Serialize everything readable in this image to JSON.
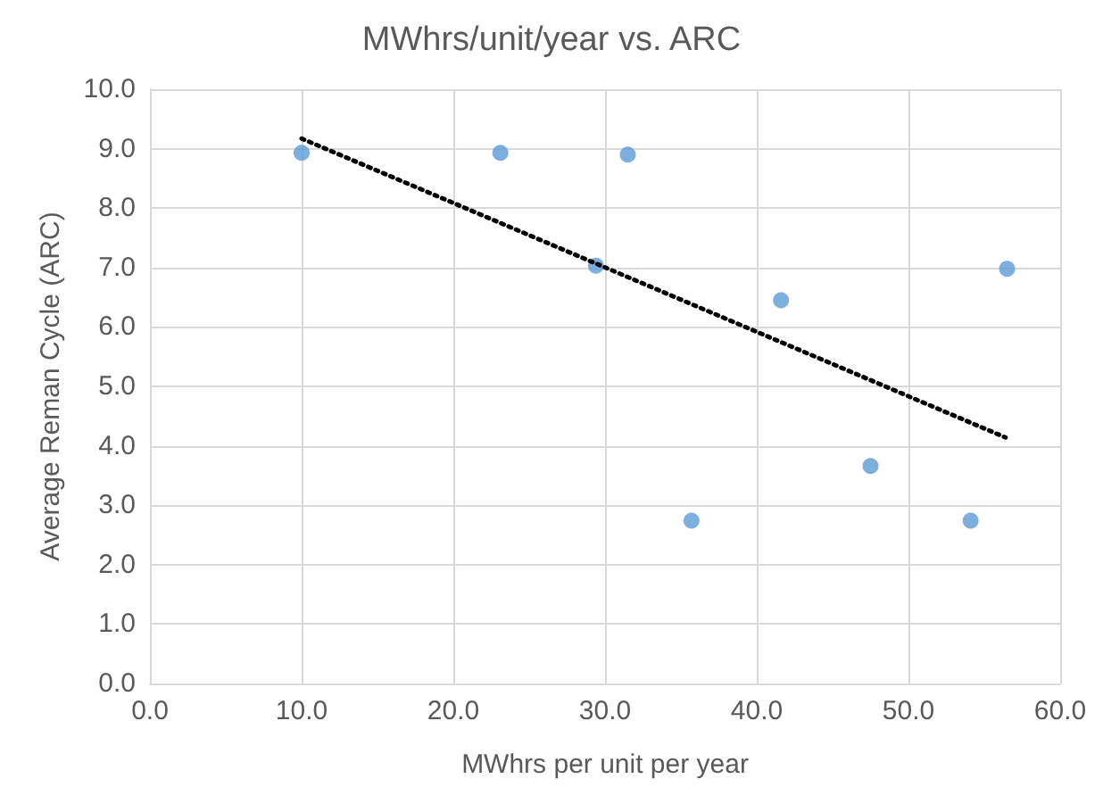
{
  "chart_data": {
    "type": "scatter",
    "title": "MWhrs/unit/year vs. ARC",
    "xlabel": "MWhrs per unit per year",
    "ylabel": "Average Reman Cycle (ARC)",
    "series": [
      {
        "color": "#5b9bd5",
        "marker": "circle",
        "x": [
          10.0,
          23.1,
          31.5,
          29.4,
          41.6,
          56.5,
          35.7,
          47.5,
          54.1
        ],
        "values": [
          8.93,
          8.93,
          8.9,
          7.03,
          6.45,
          6.98,
          2.74,
          3.66,
          2.74
        ]
      },
      {
        "type": "line",
        "color": "#000000",
        "line_style": "dotted",
        "marker": "none",
        "x": [
          10.0,
          56.4
        ],
        "values": [
          9.17,
          4.14
        ]
      }
    ],
    "xlim": [
      0,
      60
    ],
    "xticks": [
      {
        "value": 0,
        "label": "0.0"
      },
      {
        "value": 10,
        "label": "10.0"
      },
      {
        "value": 20,
        "label": "20.0"
      },
      {
        "value": 30,
        "label": "30.0"
      },
      {
        "value": 40,
        "label": "40.0"
      },
      {
        "value": 50,
        "label": "50.0"
      },
      {
        "value": 60,
        "label": "60.0"
      }
    ],
    "ylim": [
      0,
      10
    ],
    "yticks": [
      {
        "value": 0,
        "label": "0.0"
      },
      {
        "value": 1,
        "label": "1.0"
      },
      {
        "value": 2,
        "label": "2.0"
      },
      {
        "value": 3,
        "label": "3.0"
      },
      {
        "value": 4,
        "label": "4.0"
      },
      {
        "value": 5,
        "label": "5.0"
      },
      {
        "value": 6,
        "label": "6.0"
      },
      {
        "value": 7,
        "label": "7.0"
      },
      {
        "value": 8,
        "label": "8.0"
      },
      {
        "value": 9,
        "label": "9.0"
      },
      {
        "value": 10,
        "label": "10.0"
      }
    ],
    "grid": true
  }
}
